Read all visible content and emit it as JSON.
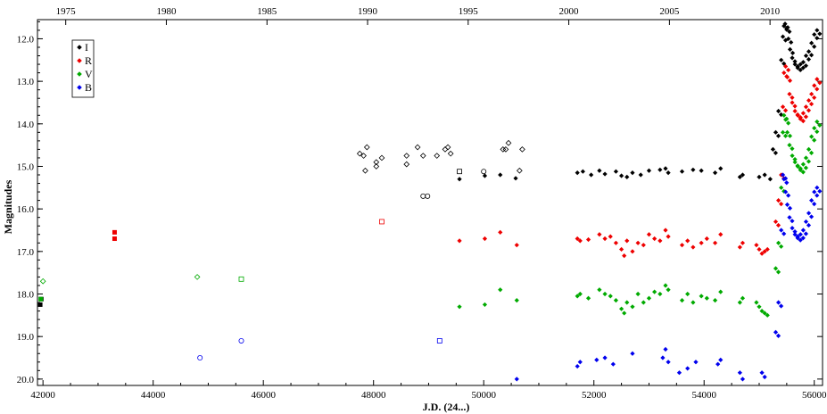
{
  "chart_data": {
    "type": "scatter",
    "title": "",
    "xlabel": "J.D. (24...)",
    "ylabel": "Magnitudes",
    "xlim": [
      41900,
      56150
    ],
    "ylim": [
      11.55,
      20.15
    ],
    "y_inverted": true,
    "x_ticks": [
      "42000",
      "44000",
      "46000",
      "48000",
      "50000",
      "52000",
      "54000",
      "56000"
    ],
    "x_tick_values": [
      42000,
      44000,
      46000,
      48000,
      50000,
      52000,
      54000,
      56000
    ],
    "top_axis_label": "",
    "top_ticks": [
      "1975",
      "1980",
      "1985",
      "1990",
      "1995",
      "2000",
      "2005",
      "2010"
    ],
    "top_tick_values": [
      42413,
      44239,
      46066,
      47892,
      49718,
      51544,
      53371,
      55197
    ],
    "y_ticks": [
      "12.0",
      "13.0",
      "14.0",
      "15.0",
      "16.0",
      "17.0",
      "18.0",
      "19.0",
      "20.0"
    ],
    "y_tick_values": [
      12,
      13,
      14,
      15,
      16,
      17,
      18,
      19,
      20
    ],
    "grid": false,
    "legend_position": "top-left",
    "legend": [
      {
        "label": "I",
        "color": "#000000"
      },
      {
        "label": "R",
        "color": "#ee0000"
      },
      {
        "label": "V",
        "color": "#00aa00"
      },
      {
        "label": "B",
        "color": "#0000ee"
      }
    ],
    "series": [
      {
        "name": "I",
        "color": "#000000",
        "filled_diamond": [
          [
            49560,
            15.3
          ],
          [
            50020,
            15.22
          ],
          [
            50300,
            15.2
          ],
          [
            50580,
            15.28
          ],
          [
            51700,
            15.15
          ],
          [
            51800,
            15.12
          ],
          [
            51950,
            15.2
          ],
          [
            52100,
            15.1
          ],
          [
            52200,
            15.18
          ],
          [
            52400,
            15.12
          ],
          [
            52500,
            15.22
          ],
          [
            52600,
            15.25
          ],
          [
            52700,
            15.15
          ],
          [
            52850,
            15.2
          ],
          [
            53000,
            15.1
          ],
          [
            53200,
            15.08
          ],
          [
            53300,
            15.05
          ],
          [
            53350,
            15.15
          ],
          [
            53600,
            15.12
          ],
          [
            53800,
            15.08
          ],
          [
            53950,
            15.1
          ],
          [
            54200,
            15.15
          ],
          [
            54300,
            15.05
          ],
          [
            54650,
            15.25
          ],
          [
            54700,
            15.2
          ],
          [
            55000,
            15.25
          ],
          [
            55100,
            15.2
          ],
          [
            55200,
            15.3
          ]
        ],
        "square": [
          [
            41950,
            18.25
          ],
          [
            41970,
            18.12
          ]
        ],
        "open_diamond": [
          [
            47750,
            14.7
          ],
          [
            47820,
            14.75
          ],
          [
            47880,
            14.55
          ],
          [
            47850,
            15.1
          ],
          [
            48050,
            15.0
          ],
          [
            48050,
            14.9
          ],
          [
            48150,
            14.8
          ],
          [
            48600,
            14.75
          ],
          [
            48600,
            14.95
          ],
          [
            48800,
            14.55
          ],
          [
            48900,
            14.75
          ],
          [
            49150,
            14.75
          ],
          [
            49300,
            14.6
          ],
          [
            49350,
            14.55
          ],
          [
            49400,
            14.7
          ],
          [
            50350,
            14.6
          ],
          [
            50400,
            14.6
          ],
          [
            50450,
            14.45
          ],
          [
            50650,
            15.1
          ],
          [
            50700,
            14.6
          ]
        ],
        "open_circle": [
          [
            48900,
            15.7
          ],
          [
            48980,
            15.7
          ]
        ],
        "open_square": [
          [
            49560,
            15.12
          ]
        ],
        "open_circle_b": [
          [
            50000,
            15.12
          ]
        ],
        "outburst": [
          [
            55250,
            14.6
          ],
          [
            55300,
            14.2
          ],
          [
            55350,
            13.7
          ],
          [
            55400,
            12.5
          ],
          [
            55430,
            11.95
          ],
          [
            55450,
            11.7
          ],
          [
            55470,
            11.65
          ],
          [
            55500,
            11.75
          ],
          [
            55530,
            12.0
          ],
          [
            55560,
            12.25
          ],
          [
            55600,
            12.45
          ],
          [
            55650,
            12.6
          ],
          [
            55700,
            12.65
          ],
          [
            55750,
            12.6
          ],
          [
            55800,
            12.55
          ],
          [
            55850,
            12.4
          ],
          [
            55900,
            12.3
          ],
          [
            55950,
            12.1
          ],
          [
            56000,
            11.9
          ],
          [
            56050,
            11.8
          ]
        ]
      },
      {
        "name": "R",
        "color": "#ee0000",
        "filled_diamond": [
          [
            49560,
            16.75
          ],
          [
            50020,
            16.7
          ],
          [
            50300,
            16.55
          ],
          [
            50600,
            16.85
          ],
          [
            51700,
            16.7
          ],
          [
            51750,
            16.75
          ],
          [
            51900,
            16.72
          ],
          [
            52100,
            16.6
          ],
          [
            52200,
            16.7
          ],
          [
            52300,
            16.65
          ],
          [
            52400,
            16.8
          ],
          [
            52500,
            16.95
          ],
          [
            52550,
            17.1
          ],
          [
            52600,
            16.75
          ],
          [
            52700,
            17.0
          ],
          [
            52800,
            16.8
          ],
          [
            52900,
            16.85
          ],
          [
            53000,
            16.6
          ],
          [
            53100,
            16.7
          ],
          [
            53200,
            16.75
          ],
          [
            53300,
            16.5
          ],
          [
            53350,
            16.65
          ],
          [
            53600,
            16.85
          ],
          [
            53700,
            16.75
          ],
          [
            53800,
            16.9
          ],
          [
            53950,
            16.8
          ],
          [
            54050,
            16.7
          ],
          [
            54200,
            16.8
          ],
          [
            54300,
            16.6
          ],
          [
            54650,
            16.9
          ],
          [
            54700,
            16.8
          ],
          [
            54950,
            16.85
          ],
          [
            55000,
            16.95
          ],
          [
            55050,
            17.05
          ],
          [
            55100,
            17.0
          ],
          [
            55150,
            16.95
          ]
        ],
        "square": [
          [
            43300,
            16.55
          ],
          [
            43300,
            16.7
          ]
        ],
        "open_square": [
          [
            48150,
            16.3
          ]
        ],
        "outburst": [
          [
            55300,
            16.3
          ],
          [
            55350,
            15.8
          ],
          [
            55400,
            15.2
          ],
          [
            55430,
            13.6
          ],
          [
            55450,
            12.8
          ],
          [
            55480,
            12.65
          ],
          [
            55510,
            12.9
          ],
          [
            55550,
            13.3
          ],
          [
            55600,
            13.5
          ],
          [
            55650,
            13.7
          ],
          [
            55700,
            13.8
          ],
          [
            55750,
            13.85
          ],
          [
            55800,
            13.75
          ],
          [
            55850,
            13.6
          ],
          [
            55900,
            13.45
          ],
          [
            55950,
            13.3
          ],
          [
            56000,
            13.1
          ],
          [
            56050,
            12.95
          ]
        ]
      },
      {
        "name": "V",
        "color": "#00aa00",
        "filled_diamond": [
          [
            49560,
            18.3
          ],
          [
            50020,
            18.25
          ],
          [
            50300,
            17.9
          ],
          [
            50600,
            18.15
          ],
          [
            51700,
            18.05
          ],
          [
            51750,
            18.0
          ],
          [
            51900,
            18.1
          ],
          [
            52100,
            17.9
          ],
          [
            52200,
            18.0
          ],
          [
            52300,
            18.05
          ],
          [
            52400,
            18.15
          ],
          [
            52500,
            18.35
          ],
          [
            52550,
            18.45
          ],
          [
            52600,
            18.2
          ],
          [
            52700,
            18.3
          ],
          [
            52800,
            18.0
          ],
          [
            52900,
            18.2
          ],
          [
            53000,
            18.1
          ],
          [
            53100,
            17.95
          ],
          [
            53200,
            18.0
          ],
          [
            53300,
            17.8
          ],
          [
            53350,
            17.9
          ],
          [
            53600,
            18.15
          ],
          [
            53700,
            18.0
          ],
          [
            53800,
            18.2
          ],
          [
            53950,
            18.05
          ],
          [
            54050,
            18.1
          ],
          [
            54200,
            18.15
          ],
          [
            54300,
            17.95
          ],
          [
            54650,
            18.2
          ],
          [
            54700,
            18.1
          ],
          [
            54950,
            18.2
          ],
          [
            55000,
            18.3
          ],
          [
            55050,
            18.4
          ],
          [
            55100,
            18.45
          ],
          [
            55150,
            18.5
          ]
        ],
        "square": [
          [
            41960,
            18.12
          ]
        ],
        "open_diamond": [
          [
            42000,
            17.7
          ],
          [
            44800,
            17.6
          ]
        ],
        "open_square": [
          [
            45600,
            17.65
          ]
        ],
        "outburst": [
          [
            55300,
            17.4
          ],
          [
            55350,
            16.8
          ],
          [
            55400,
            15.5
          ],
          [
            55430,
            14.2
          ],
          [
            55450,
            13.8
          ],
          [
            55480,
            13.9
          ],
          [
            55510,
            14.2
          ],
          [
            55550,
            14.5
          ],
          [
            55600,
            14.75
          ],
          [
            55650,
            14.9
          ],
          [
            55700,
            15.0
          ],
          [
            55750,
            15.05
          ],
          [
            55800,
            14.95
          ],
          [
            55850,
            14.8
          ],
          [
            55900,
            14.6
          ],
          [
            55950,
            14.3
          ],
          [
            56000,
            14.1
          ],
          [
            56050,
            13.95
          ]
        ]
      },
      {
        "name": "B",
        "color": "#0000ee",
        "filled_diamond": [
          [
            50600,
            20.0
          ],
          [
            51700,
            19.7
          ],
          [
            51750,
            19.6
          ],
          [
            52050,
            19.55
          ],
          [
            52200,
            19.5
          ],
          [
            52350,
            19.65
          ],
          [
            52700,
            19.4
          ],
          [
            53250,
            19.5
          ],
          [
            53300,
            19.3
          ],
          [
            53350,
            19.6
          ],
          [
            53550,
            19.85
          ],
          [
            53700,
            19.75
          ],
          [
            53850,
            19.6
          ],
          [
            54250,
            19.65
          ],
          [
            54300,
            19.55
          ],
          [
            54650,
            19.85
          ],
          [
            54700,
            20.0
          ],
          [
            55050,
            19.85
          ],
          [
            55100,
            19.95
          ]
        ],
        "open_circle": [
          [
            44850,
            19.5
          ],
          [
            45600,
            19.1
          ]
        ],
        "open_square": [
          [
            49200,
            19.1
          ]
        ],
        "outburst": [
          [
            55300,
            18.9
          ],
          [
            55350,
            18.2
          ],
          [
            55400,
            16.5
          ],
          [
            55430,
            15.2
          ],
          [
            55450,
            15.3
          ],
          [
            55480,
            15.6
          ],
          [
            55510,
            15.9
          ],
          [
            55550,
            16.2
          ],
          [
            55600,
            16.45
          ],
          [
            55650,
            16.6
          ],
          [
            55700,
            16.65
          ],
          [
            55750,
            16.6
          ],
          [
            55800,
            16.5
          ],
          [
            55850,
            16.3
          ],
          [
            55900,
            16.1
          ],
          [
            55950,
            15.8
          ],
          [
            56000,
            15.6
          ],
          [
            56050,
            15.5
          ]
        ]
      }
    ]
  }
}
